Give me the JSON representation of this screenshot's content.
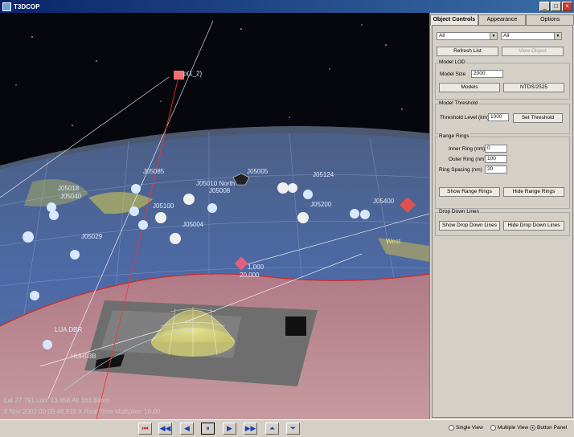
{
  "window": {
    "title": "T3DCOP"
  },
  "viewport": {
    "labels": {
      "top_track": "p(1_2)",
      "j5085": "J05085",
      "j5010": "J05010 North",
      "j5008": "J05008",
      "j5018": "J05018",
      "j5040": "J05040",
      "j5100": "J05100",
      "j5004": "J05004",
      "j5029": "J05029",
      "j5005": "J05005",
      "j5124": "J05124",
      "j5200": "J05200",
      "j5400": "J05400",
      "west": "West",
      "range1": "1,000",
      "range2": "20,000",
      "lua": "LUA DBR",
      "hur": "HUR03B"
    },
    "hud": {
      "latlon": "Lat 27.791  Lon: 13.858  Alt 163.84nm",
      "time": "6 Nov 2002 00:09:48.916     X Real Time Multiplier: 16.00"
    }
  },
  "panel": {
    "tabs": [
      "Object Controls",
      "Appearance",
      "Options"
    ],
    "filter1": "All",
    "filter2": "All",
    "refresh_label": "Refresh List",
    "view_object_label": "View Object",
    "model_lod": {
      "title": "Model LOD",
      "size_label": "Model Size",
      "size_value": "2000",
      "models_label": "Models",
      "ntds_label": "NTDS/2525"
    },
    "model_threshold": {
      "title": "Model Threshold",
      "level_label": "Threshold Level (km)",
      "level_value": "1000",
      "set_label": "Set Threshold"
    },
    "range_rings": {
      "title": "Range Rings",
      "inner_label": "Inner Ring (nm)",
      "inner_value": "0",
      "outer_label": "Outer Ring (nm)",
      "outer_value": "100",
      "spacing_label": "Ring Spacing (nm)",
      "spacing_value": "20",
      "show_label": "Show Range Rings",
      "hide_label": "Hide Range Rings"
    },
    "drop_lines": {
      "title": "Drop Down Lines",
      "show_label": "Show Drop Down Lines",
      "hide_label": "Hide Drop Down Lines"
    }
  },
  "toolbar": {
    "buttons": [
      "skip-to-start",
      "fast-rewind",
      "step-back",
      "pause",
      "play",
      "fast-forward",
      "speed-up",
      "slow-down"
    ],
    "glyphs": {
      "skip_start": "⏮",
      "rewind": "◀◀",
      "step_back": "◀",
      "pause": "⏸",
      "play": "▶",
      "ff": "▶▶",
      "up": "⏶",
      "down": "⏷"
    },
    "view_options": {
      "single": "Single View",
      "multiple": "Multiple View",
      "button_panel": "Button Panel"
    },
    "selected_view": "button_panel"
  }
}
